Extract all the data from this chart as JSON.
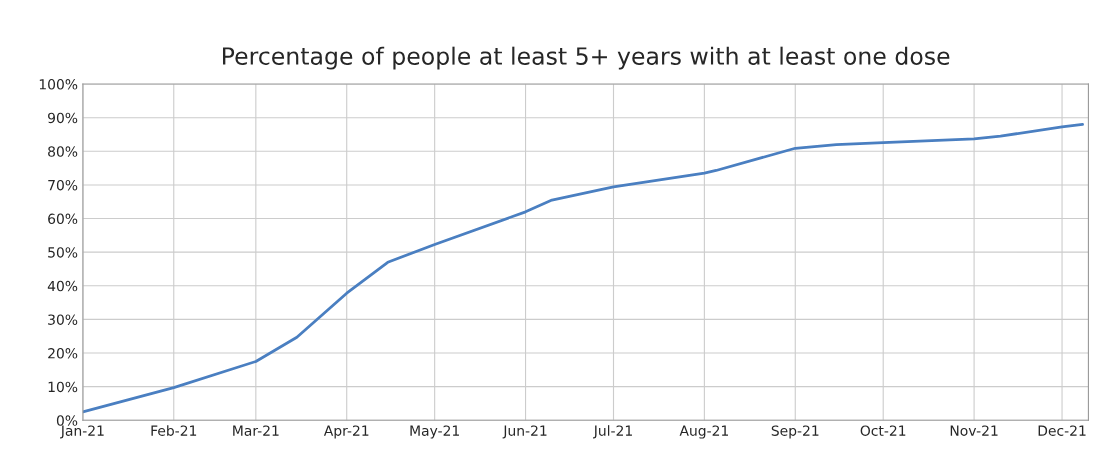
{
  "chart_data": {
    "type": "line",
    "title": "Percentage of people at least 5+ years with at least one dose",
    "x": [
      "2021-01-01",
      "2021-02-01",
      "2021-03-01",
      "2021-03-15",
      "2021-04-01",
      "2021-04-15",
      "2021-05-01",
      "2021-06-01",
      "2021-06-10",
      "2021-07-01",
      "2021-08-01",
      "2021-08-05",
      "2021-09-01",
      "2021-09-15",
      "2021-10-01",
      "2021-11-01",
      "2021-11-10",
      "2021-12-01",
      "2021-12-08"
    ],
    "series": [
      {
        "color": "#4a7fc1",
        "values": [
          2.5,
          9.7,
          17.5,
          24.7,
          37.8,
          47,
          52.3,
          62,
          65.5,
          69.4,
          73.5,
          74.3,
          80.9,
          82,
          82.6,
          83.7,
          84.5,
          87.3,
          88
        ]
      }
    ],
    "xlim": [
      "2021-01-01",
      "2021-12-10"
    ],
    "xticks": [
      {
        "value": "2021-01-01",
        "label": "Jan-21"
      },
      {
        "value": "2021-02-01",
        "label": "Feb-21"
      },
      {
        "value": "2021-03-01",
        "label": "Mar-21"
      },
      {
        "value": "2021-04-01",
        "label": "Apr-21"
      },
      {
        "value": "2021-05-01",
        "label": "May-21"
      },
      {
        "value": "2021-06-01",
        "label": "Jun-21"
      },
      {
        "value": "2021-07-01",
        "label": "Jul-21"
      },
      {
        "value": "2021-08-01",
        "label": "Aug-21"
      },
      {
        "value": "2021-09-01",
        "label": "Sep-21"
      },
      {
        "value": "2021-10-01",
        "label": "Oct-21"
      },
      {
        "value": "2021-11-01",
        "label": "Nov-21"
      },
      {
        "value": "2021-12-01",
        "label": "Dec-21"
      }
    ],
    "ylim": [
      0,
      100
    ],
    "yticks": [
      {
        "value": 0,
        "label": "0%"
      },
      {
        "value": 10,
        "label": "10%"
      },
      {
        "value": 20,
        "label": "20%"
      },
      {
        "value": 30,
        "label": "30%"
      },
      {
        "value": 40,
        "label": "40%"
      },
      {
        "value": 50,
        "label": "50%"
      },
      {
        "value": 60,
        "label": "60%"
      },
      {
        "value": 70,
        "label": "70%"
      },
      {
        "value": 80,
        "label": "80%"
      },
      {
        "value": 90,
        "label": "90%"
      },
      {
        "value": 100,
        "label": "100%"
      }
    ],
    "grid": true,
    "marker": "none",
    "line_style": "solid",
    "legend": false
  }
}
